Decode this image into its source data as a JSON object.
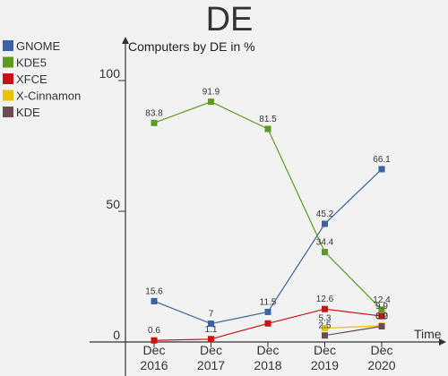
{
  "chart_data": {
    "type": "line",
    "title": "DE",
    "subtitle": "Computers by DE in %",
    "xlabel": "Time",
    "ylabel": "",
    "categories": [
      "Dec 2016",
      "Dec 2017",
      "Dec 2018",
      "Dec 2019",
      "Dec 2020"
    ],
    "category_lines": [
      [
        "Dec",
        "2016"
      ],
      [
        "Dec",
        "2017"
      ],
      [
        "Dec",
        "2018"
      ],
      [
        "Dec",
        "2019"
      ],
      [
        "Dec",
        "2020"
      ]
    ],
    "ylim": [
      0,
      100
    ],
    "yticks": [
      0,
      50,
      100
    ],
    "grid": false,
    "legend_position": "top-left",
    "series": [
      {
        "name": "GNOME",
        "color": "#3a63a4",
        "values": [
          15.6,
          7,
          11.5,
          45.2,
          66.1
        ]
      },
      {
        "name": "KDE5",
        "color": "#5b9c1d",
        "values": [
          83.8,
          91.9,
          81.5,
          34.4,
          12.4
        ]
      },
      {
        "name": "XFCE",
        "color": "#cc1111",
        "values": [
          0.6,
          1.1,
          7.1,
          12.6,
          9.9
        ]
      },
      {
        "name": "X-Cinnamon",
        "color": "#e8c300",
        "values": [
          null,
          null,
          null,
          5.3,
          6.2
        ]
      },
      {
        "name": "KDE",
        "color": "#6e4a52",
        "values": [
          null,
          null,
          null,
          2.5,
          6.0
        ]
      }
    ],
    "data_labels": [
      {
        "series": "GNOME",
        "labels": [
          "15.6",
          "7",
          "11.5",
          "45.2",
          "66.1"
        ]
      },
      {
        "series": "KDE5",
        "labels": [
          "83.8",
          "91.9",
          "81.5",
          "34.4",
          "12.4"
        ]
      },
      {
        "series": "XFCE",
        "labels": [
          "0.6",
          "1.1",
          "",
          "12.6",
          "9.9"
        ]
      },
      {
        "series": "X-Cinnamon",
        "labels": [
          "",
          "",
          "",
          "5.3",
          "6.2"
        ]
      },
      {
        "series": "KDE",
        "labels": [
          "",
          "",
          "",
          "2.5",
          "6.0"
        ]
      }
    ]
  }
}
